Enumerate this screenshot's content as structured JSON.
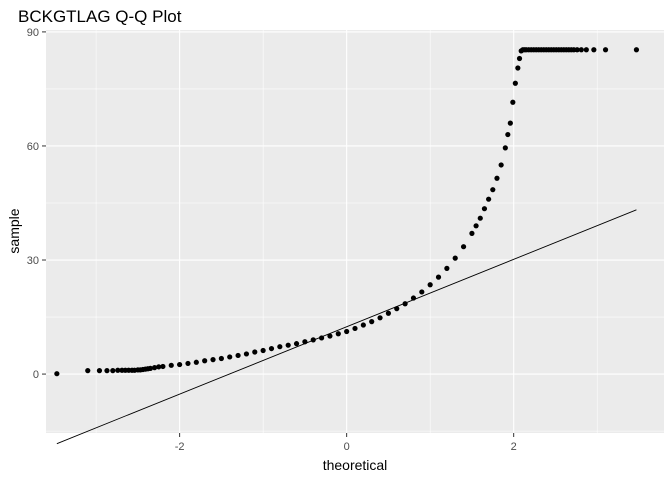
{
  "chart_data": {
    "type": "scatter",
    "title": "BCKGTLAG Q-Q Plot",
    "xlabel": "theoretical",
    "ylabel": "sample",
    "xlim": [
      -3.6,
      3.8
    ],
    "ylim": [
      -15.5,
      90.5
    ],
    "x_ticks": [
      -2,
      0,
      2
    ],
    "x_tick_labels": [
      "-2",
      "0",
      "2"
    ],
    "y_ticks": [
      0,
      30,
      60,
      90
    ],
    "y_tick_labels": [
      "0",
      "30",
      "60",
      "90"
    ],
    "grid": true,
    "legend": "none",
    "colors": {
      "panel": "#ebebeb",
      "grid": "#ffffff",
      "points": "#000000",
      "line": "#000000"
    },
    "reference_line": {
      "x": [
        -3.47,
        3.47
      ],
      "y": [
        -18.3,
        43.2
      ]
    },
    "series": [
      {
        "points_x": [
          -3.47,
          -3.1,
          -2.96,
          -2.87,
          -2.8,
          -2.74,
          -2.69,
          -2.65,
          -2.61,
          -2.57,
          -2.54,
          -2.5,
          -2.47,
          -2.44,
          -2.41,
          -2.38,
          -2.35,
          -2.3,
          -2.25,
          -2.2,
          -2.1,
          -2.0,
          -1.9,
          -1.8,
          -1.7,
          -1.6,
          -1.5,
          -1.4,
          -1.3,
          -1.2,
          -1.1,
          -1.0,
          -0.9,
          -0.8,
          -0.7,
          -0.6,
          -0.5,
          -0.4,
          -0.3,
          -0.2,
          -0.1,
          0.0,
          0.1,
          0.2,
          0.3,
          0.4,
          0.5,
          0.6,
          0.7,
          0.8,
          0.9,
          1.0,
          1.1,
          1.2,
          1.3,
          1.4,
          1.5,
          1.55,
          1.6,
          1.65,
          1.7,
          1.75,
          1.8,
          1.85,
          1.9,
          1.93,
          1.96,
          1.99,
          2.02,
          2.05,
          2.07,
          2.09,
          2.11,
          2.13,
          2.15,
          2.18,
          2.21,
          2.24,
          2.27,
          2.3,
          2.33,
          2.36,
          2.39,
          2.42,
          2.45,
          2.48,
          2.51,
          2.54,
          2.57,
          2.6,
          2.63,
          2.66,
          2.69,
          2.72,
          2.76,
          2.81,
          2.87,
          2.96,
          3.1,
          3.47
        ],
        "points_y": [
          0.1,
          0.9,
          0.9,
          0.9,
          0.9,
          1.0,
          1.0,
          1.0,
          1.0,
          1.0,
          1.0,
          1.1,
          1.1,
          1.2,
          1.3,
          1.4,
          1.5,
          1.7,
          1.9,
          2.0,
          2.3,
          2.5,
          2.8,
          3.1,
          3.5,
          3.8,
          4.1,
          4.5,
          4.9,
          5.3,
          5.8,
          6.2,
          6.7,
          7.2,
          7.6,
          8.0,
          8.5,
          9.0,
          9.5,
          10.0,
          10.6,
          11.2,
          12.0,
          12.9,
          13.8,
          14.8,
          16.0,
          17.2,
          18.5,
          20.0,
          21.6,
          23.5,
          25.5,
          27.8,
          30.5,
          33.5,
          37.0,
          39.0,
          41.0,
          43.5,
          46.0,
          48.5,
          51.5,
          55.0,
          59.5,
          63.0,
          66.0,
          71.5,
          76.5,
          80.5,
          83.0,
          85.0,
          85.3,
          85.3,
          85.3,
          85.3,
          85.3,
          85.3,
          85.3,
          85.3,
          85.3,
          85.3,
          85.3,
          85.3,
          85.3,
          85.3,
          85.3,
          85.3,
          85.3,
          85.3,
          85.3,
          85.3,
          85.3,
          85.3,
          85.3,
          85.3,
          85.3,
          85.3,
          85.3,
          85.3
        ]
      }
    ]
  }
}
